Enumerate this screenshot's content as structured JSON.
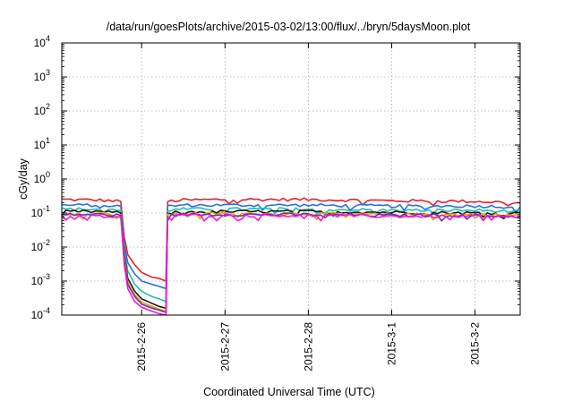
{
  "chart_data": {
    "type": "line",
    "title": "/data/run/goesPlots/archive/2015-03-02/13:00/flux/../bryn/5daysMoon.plot",
    "xlabel": "Coordinated Universal Time (UTC)",
    "ylabel": "cGy/day",
    "yscale": "log",
    "ylim": [
      0.0001,
      10000
    ],
    "xlim": [
      "2015-02-25 01:00",
      "2015-03-02 13:00"
    ],
    "grid": true,
    "legend": "none",
    "yticks": [
      {
        "value": 10000,
        "base": "10",
        "exp": "4"
      },
      {
        "value": 1000,
        "base": "10",
        "exp": "3"
      },
      {
        "value": 100,
        "base": "10",
        "exp": "2"
      },
      {
        "value": 10,
        "base": "10",
        "exp": "1"
      },
      {
        "value": 1,
        "base": "10",
        "exp": "0"
      },
      {
        "value": 0.1,
        "base": "10",
        "exp": "-1"
      },
      {
        "value": 0.01,
        "base": "10",
        "exp": "-2"
      },
      {
        "value": 0.001,
        "base": "10",
        "exp": "-3"
      },
      {
        "value": 0.0001,
        "base": "10",
        "exp": "-4"
      }
    ],
    "xticks": [
      {
        "value": "2015-02-26",
        "label": "2015-2-26"
      },
      {
        "value": "2015-02-27",
        "label": "2015-2-27"
      },
      {
        "value": "2015-02-28",
        "label": "2015-2-28"
      },
      {
        "value": "2015-03-01",
        "label": "2015-3-1"
      },
      {
        "value": "2015-03-02",
        "label": "2015-3-2"
      }
    ],
    "x": [
      "2015-02-25 01:00",
      "2015-02-25 12:00",
      "2015-02-25 18:00",
      "2015-02-25 19:00",
      "2015-02-25 20:00",
      "2015-02-25 22:00",
      "2015-02-26 00:00",
      "2015-02-26 03:00",
      "2015-02-26 05:00",
      "2015-02-26 07:00",
      "2015-02-26 07:30",
      "2015-02-26 12:00",
      "2015-02-27 00:00",
      "2015-02-28 00:00",
      "2015-03-01 00:00",
      "2015-03-02 00:00",
      "2015-03-02 13:00"
    ],
    "series": [
      {
        "color": "#e8202a",
        "values": [
          0.25,
          0.24,
          0.22,
          0.02,
          0.006,
          0.003,
          0.0018,
          0.0013,
          0.0012,
          0.001,
          0.22,
          0.24,
          0.25,
          0.25,
          0.23,
          0.22,
          0.2
        ]
      },
      {
        "color": "#2f6fe0",
        "values": [
          0.17,
          0.17,
          0.16,
          0.012,
          0.0035,
          0.0016,
          0.001,
          0.0008,
          0.0007,
          0.0006,
          0.16,
          0.17,
          0.17,
          0.17,
          0.16,
          0.16,
          0.15
        ]
      },
      {
        "color": "#20c0a8",
        "values": [
          0.13,
          0.13,
          0.12,
          0.008,
          0.002,
          0.0008,
          0.0005,
          0.00035,
          0.0003,
          0.00025,
          0.12,
          0.13,
          0.13,
          0.13,
          0.12,
          0.12,
          0.11
        ]
      },
      {
        "color": "#1a1a1a",
        "values": [
          0.11,
          0.11,
          0.1,
          0.006,
          0.0012,
          0.0005,
          0.0003,
          0.00022,
          0.00018,
          0.00016,
          0.1,
          0.11,
          0.11,
          0.11,
          0.105,
          0.1,
          0.1
        ]
      },
      {
        "color": "#e8a020",
        "values": [
          0.095,
          0.095,
          0.09,
          0.005,
          0.0009,
          0.0004,
          0.00024,
          0.00018,
          0.00015,
          0.00013,
          0.09,
          0.095,
          0.095,
          0.095,
          0.09,
          0.09,
          0.085
        ]
      },
      {
        "color": "#7030a0",
        "values": [
          0.09,
          0.09,
          0.085,
          0.004,
          0.0008,
          0.00035,
          0.00021,
          0.00016,
          0.00014,
          0.00012,
          0.085,
          0.09,
          0.09,
          0.09,
          0.085,
          0.085,
          0.08
        ]
      },
      {
        "color": "#f018d8",
        "values": [
          0.08,
          0.08,
          0.075,
          0.003,
          0.0006,
          0.00025,
          0.00017,
          0.00013,
          0.00011,
          0.0001,
          0.08,
          0.085,
          0.085,
          0.085,
          0.08,
          0.08,
          0.075
        ]
      }
    ]
  }
}
